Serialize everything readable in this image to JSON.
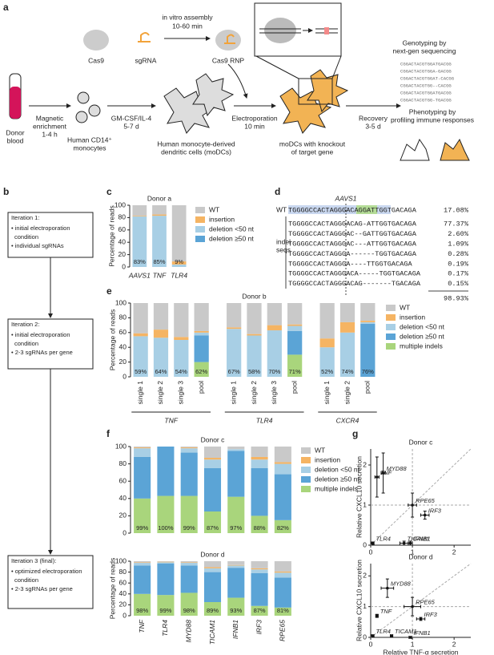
{
  "panel_a": {
    "label": "a",
    "cas9": "Cas9",
    "sgrna": "sgRNA",
    "assembly": [
      "in vitro assembly",
      "10-60 min"
    ],
    "rnp": "Cas9 RNP",
    "donor": [
      "Donor",
      "blood"
    ],
    "magnetic": [
      "Magnetic",
      "enrichment",
      "1-4 h"
    ],
    "monocytes": [
      "Human CD14⁺",
      "monocytes"
    ],
    "gmcsf": [
      "GM-CSF/IL-4",
      "5-7 d"
    ],
    "modc": [
      "Human monocyte-derived",
      "dendritic cells (moDCs)"
    ],
    "electro": [
      "Electroporation",
      "10 min"
    ],
    "ko": [
      "moDCs with knockout",
      "of target gene"
    ],
    "recovery": [
      "Recovery",
      "3-5 d"
    ],
    "genotyping": [
      "Genotyping by",
      "next-gen sequencing"
    ],
    "sequences": [
      "CGGACTACGTGGATGACGG",
      "CGGACTACGTGGA-GACGG",
      "CGGACTACGTGGAT-CACGG",
      "CGGACTACGTGG--CACGG",
      "CGGACTACGTGGATGACGG",
      "CGGACTACGTGG-TGACGG"
    ],
    "phenotyping": [
      "Phenotyping by",
      "profiling immune responses"
    ]
  },
  "panel_b": {
    "label": "b",
    "boxes": [
      [
        "Iteration 1:",
        "• initial electroporation",
        "condition",
        "• individual sgRNAs"
      ],
      [
        "Iteration 2:",
        "• initial electroporation",
        "condition",
        "• 2-3 sgRNAs per gene"
      ],
      [
        "Iteration 3 (final):",
        "• optimized electroporation",
        "condition",
        "• 2-3 sgRNAs per gene"
      ]
    ]
  },
  "panel_d": {
    "label": "d",
    "gene": "AAVS1",
    "wt_label": "WT",
    "indel_label": [
      "indel",
      "seqs"
    ],
    "rows": [
      {
        "seq": "TGGGGCCACTAGGGACAGGATTGGTGACAGA",
        "pct": "17.08%"
      },
      {
        "seq": "TGGGGCCACTAGGGACAG-ATTGGTGACAGA",
        "pct": "77.37%"
      },
      {
        "seq": "TGGGGCCACTAGGGAC--GATTGGTGACAGA",
        "pct": "2.60%"
      },
      {
        "seq": "TGGGGCCACTAGGGAC---ATTGGTGACAGA",
        "pct": "1.09%"
      },
      {
        "seq": "TGGGGCCACTAGGGA------TGGTGACAGA",
        "pct": "0.28%"
      },
      {
        "seq": "TGGGGCCACTAGGGA----TTGGTGACAGA",
        "pct": "0.19%"
      },
      {
        "seq": "TGGGGCCACTAGGGACA-----TGGTGACAGA",
        "pct": "0.17%"
      },
      {
        "seq": "TGGGGCCACTAGGGACAG-------TGACAGA",
        "pct": "0.15%"
      }
    ],
    "total": "98.93%"
  },
  "chart_data": [
    {
      "type": "bar",
      "stacked": true,
      "panel": "c",
      "title": "Donor a",
      "ylabel": "Percentage of reads",
      "italic_categories": true,
      "rotate_labels": false,
      "legend": true,
      "categories": [
        "AAVS1",
        "TNF",
        "TLR4"
      ],
      "ylim": [
        0,
        100
      ],
      "yticks": [
        0,
        20,
        40,
        60,
        80,
        100
      ],
      "series": [
        {
          "name": "WT",
          "color": "#c9c9c9",
          "values": [
            17,
            15,
            91
          ]
        },
        {
          "name": "insertion",
          "color": "#f5b463",
          "values": [
            1,
            2,
            5
          ]
        },
        {
          "name": "deletion <50 nt",
          "color": "#a8cfe5",
          "values": [
            82,
            83,
            4
          ]
        },
        {
          "name": "deletion ≥50 nt",
          "color": "#5ba4d6",
          "values": [
            0,
            0,
            0
          ]
        }
      ],
      "edited": {
        "values": [
          83,
          85,
          9
        ],
        "value_labels": [
          "83%",
          "85%",
          "9%"
        ]
      }
    },
    {
      "type": "bar",
      "stacked": true,
      "panel": "e",
      "title": "Donor b",
      "ylabel": "Percentage of reads",
      "italic_categories": false,
      "rotate_labels": true,
      "legend": true,
      "groups": [
        {
          "name": "TNF",
          "categories": [
            "single 1",
            "single 2",
            "single 3",
            "pool"
          ]
        },
        {
          "name": "TLR4",
          "categories": [
            "single 1",
            "single 2",
            "single 3",
            "pool"
          ]
        },
        {
          "name": "CXCR4",
          "categories": [
            "single 1",
            "single 2",
            "pool"
          ]
        }
      ],
      "ylim": [
        0,
        100
      ],
      "yticks": [
        0,
        20,
        40,
        60,
        80,
        100
      ],
      "series": [
        {
          "name": "WT",
          "color": "#c9c9c9",
          "values": [
            41,
            36,
            46,
            38,
            33,
            42,
            30,
            29,
            48,
            26,
            24
          ]
        },
        {
          "name": "insertion",
          "color": "#f5b463",
          "values": [
            4,
            11,
            4,
            2,
            2,
            2,
            7,
            2,
            12,
            14,
            2
          ]
        },
        {
          "name": "deletion <50 nt",
          "color": "#a8cfe5",
          "values": [
            55,
            53,
            50,
            4,
            65,
            56,
            63,
            7,
            40,
            60,
            2
          ]
        },
        {
          "name": "deletion ≥50 nt",
          "color": "#5ba4d6",
          "values": [
            0,
            0,
            0,
            36,
            0,
            0,
            0,
            32,
            0,
            0,
            72
          ]
        },
        {
          "name": "multiple indels",
          "color": "#a9d57c",
          "values": [
            0,
            0,
            0,
            20,
            0,
            0,
            0,
            30,
            0,
            0,
            0
          ]
        }
      ],
      "edited": {
        "values": [
          59,
          64,
          54,
          62,
          67,
          58,
          70,
          71,
          52,
          74,
          76
        ],
        "value_labels": [
          "59%",
          "64%",
          "54%",
          "62%",
          "67%",
          "58%",
          "70%",
          "71%",
          "52%",
          "74%",
          "76%"
        ]
      }
    },
    {
      "type": "bar",
      "stacked": true,
      "panel": "f",
      "title": "Donor c",
      "italic_categories": true,
      "rotate_labels": true,
      "legend": true,
      "show_categories": false,
      "categories": [
        "TNF",
        "TLR4",
        "MYD88",
        "TICAM1",
        "IFNB1",
        "IRF3",
        "RPE65"
      ],
      "ylim": [
        0,
        100
      ],
      "yticks": [
        0,
        20,
        40,
        60,
        80,
        100
      ],
      "series": [
        {
          "name": "WT",
          "color": "#c9c9c9",
          "values": [
            1,
            0,
            1,
            13,
            3,
            12,
            18
          ]
        },
        {
          "name": "insertion",
          "color": "#f5b463",
          "values": [
            1,
            0,
            1,
            2,
            0,
            3,
            2
          ]
        },
        {
          "name": "deletion <50 nt",
          "color": "#a8cfe5",
          "values": [
            10,
            0,
            5,
            10,
            2,
            10,
            12
          ]
        },
        {
          "name": "deletion ≥50 nt",
          "color": "#5ba4d6",
          "values": [
            48,
            57,
            50,
            50,
            53,
            55,
            53
          ]
        },
        {
          "name": "multiple indels",
          "color": "#a9d57c",
          "values": [
            40,
            43,
            43,
            25,
            42,
            20,
            15
          ]
        }
      ],
      "edited": {
        "values": [
          99,
          100,
          99,
          87,
          97,
          88,
          82
        ],
        "value_labels": [
          "99%",
          "100%",
          "99%",
          "87%",
          "97%",
          "88%",
          "82%"
        ]
      }
    },
    {
      "type": "bar",
      "stacked": true,
      "title": "Donor d",
      "ylabel": "Percentage of reads",
      "italic_categories": true,
      "rotate_labels": true,
      "legend": false,
      "show_categories": true,
      "categories": [
        "TNF",
        "TLR4",
        "MYD88",
        "TICAM1",
        "IFNB1",
        "IRF3",
        "RPE65"
      ],
      "ylim": [
        0,
        100
      ],
      "yticks": [
        0,
        20,
        40,
        60,
        80,
        100
      ],
      "series": [
        {
          "name": "WT",
          "color": "#c9c9c9",
          "values": [
            2,
            1,
            2,
            11,
            7,
            13,
            19
          ]
        },
        {
          "name": "insertion",
          "color": "#f5b463",
          "values": [
            1,
            1,
            1,
            2,
            1,
            2,
            2
          ]
        },
        {
          "name": "deletion <50 nt",
          "color": "#a8cfe5",
          "values": [
            5,
            2,
            5,
            7,
            4,
            7,
            9
          ]
        },
        {
          "name": "deletion ≥50 nt",
          "color": "#5ba4d6",
          "values": [
            52,
            58,
            50,
            55,
            55,
            60,
            55
          ]
        },
        {
          "name": "multiple indels",
          "color": "#a9d57c",
          "values": [
            40,
            38,
            42,
            25,
            33,
            18,
            15
          ]
        }
      ],
      "edited": {
        "values": [
          98,
          99,
          98,
          89,
          93,
          87,
          81
        ],
        "value_labels": [
          "98%",
          "99%",
          "98%",
          "89%",
          "93%",
          "87%",
          "81%"
        ]
      }
    },
    {
      "type": "scatter",
      "panel": "g",
      "title": "Donor c",
      "ylabel": "Relative CXCL10 secretion",
      "xlim": [
        0,
        2.4
      ],
      "ylim": [
        0,
        2.4
      ],
      "xticks": [
        0,
        1,
        2
      ],
      "yticks": [
        0,
        1,
        2
      ],
      "reference_x": 1,
      "reference_y": 1,
      "diagonal": true,
      "color": "#111111",
      "points": [
        {
          "label": "TNF",
          "x": 0.15,
          "y": 1.7,
          "xerr": 0.05,
          "yerr": 0.5
        },
        {
          "label": "MYD88",
          "x": 0.3,
          "y": 1.8,
          "xerr": 0.05,
          "yerr": 0.5
        },
        {
          "label": "RPE65",
          "x": 1.0,
          "y": 1.0,
          "xerr": 0.1,
          "yerr": 0.3
        },
        {
          "label": "IRF3",
          "x": 1.3,
          "y": 0.75,
          "xerr": 0.1,
          "yerr": 0.1
        },
        {
          "label": "TICAM1",
          "x": 0.8,
          "y": 0.05,
          "xerr": 0.1,
          "yerr": 0.05
        },
        {
          "label": "IFNB1",
          "x": 0.95,
          "y": 0.05,
          "xerr": 0.05,
          "yerr": 0.05
        },
        {
          "label": "TLR4",
          "x": 0.05,
          "y": 0.05,
          "xerr": 0.03,
          "yerr": 0.03
        }
      ]
    },
    {
      "type": "scatter",
      "title": "Donor d",
      "xlabel": "Relative TNF-α secretion",
      "ylabel": "Relative CXCL10 secretion",
      "xlim": [
        0,
        2.4
      ],
      "ylim": [
        0,
        2.4
      ],
      "xticks": [
        0,
        1,
        2
      ],
      "yticks": [
        0,
        1,
        2
      ],
      "reference_x": 1,
      "reference_y": 1,
      "diagonal": true,
      "color": "#111111",
      "points": [
        {
          "label": "MYD88",
          "x": 0.4,
          "y": 1.6,
          "xerr": 0.15,
          "yerr": 0.3
        },
        {
          "label": "TNF",
          "x": 0.15,
          "y": 0.7,
          "xerr": 0.03,
          "yerr": 0.05
        },
        {
          "label": "RPE65",
          "x": 1.0,
          "y": 1.0,
          "xerr": 0.2,
          "yerr": 0.3
        },
        {
          "label": "IRF3",
          "x": 1.2,
          "y": 0.6,
          "xerr": 0.1,
          "yerr": 0.05
        },
        {
          "label": "TICAM1",
          "x": 0.5,
          "y": 0.05,
          "xerr": 0.03,
          "yerr": 0.03
        },
        {
          "label": "IFNB1",
          "x": 0.95,
          "y": 0.0,
          "xerr": 0.03,
          "yerr": 0.02
        },
        {
          "label": "TLR4",
          "x": 0.05,
          "y": 0.05,
          "xerr": 0.03,
          "yerr": 0.03
        }
      ]
    }
  ]
}
